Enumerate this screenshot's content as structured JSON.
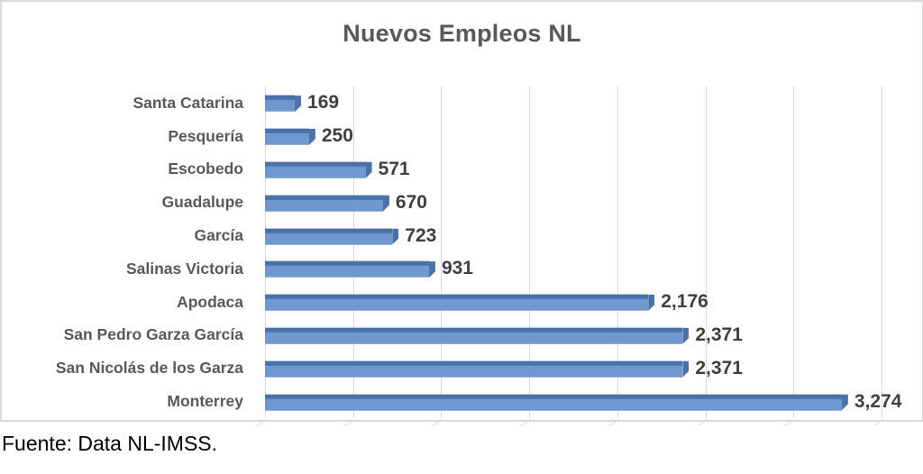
{
  "chart": {
    "title": "Nuevos Empleos NL"
  },
  "chart_data": {
    "type": "bar",
    "orientation": "horizontal",
    "style": "3d-bar",
    "title": "Nuevos Empleos NL",
    "categories": [
      "Santa Catarina",
      "Pesquería",
      "Escobedo",
      "Guadalupe",
      "García",
      "Salinas Victoria",
      "Apodaca",
      "San Pedro Garza García",
      "San Nicolás de los Garza",
      "Monterrey"
    ],
    "values": [
      169,
      250,
      571,
      670,
      723,
      931,
      2176,
      2371,
      2371,
      3274
    ],
    "value_labels": [
      "169",
      "250",
      "571",
      "670",
      "723",
      "931",
      "2,176",
      "2,371",
      "2,371",
      "3,274"
    ],
    "xlabel": "",
    "ylabel": "",
    "xlim": [
      0,
      3500
    ],
    "x_major_unit": 500,
    "grid": true,
    "legend": "none",
    "colors": {
      "bar_face": "#6f99ce",
      "bar_edge": "#4a72a8",
      "gridline": "#d9d9d9",
      "chart_border": "#d9d9d9",
      "title_text": "#595959",
      "category_text": "#595959",
      "value_text": "#3f3f3f"
    }
  },
  "footer": {
    "source": "Fuente: Data NL-IMSS."
  }
}
